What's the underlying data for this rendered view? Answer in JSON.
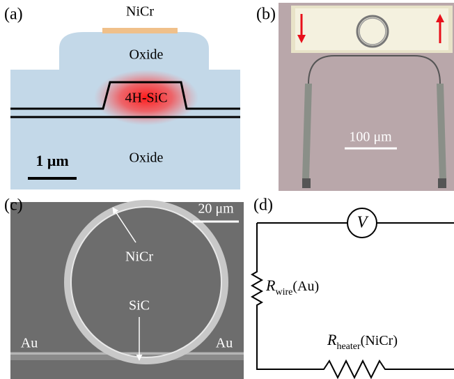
{
  "panels": {
    "a": {
      "label": "(a)",
      "heater": "NiCr",
      "top_oxide": "Oxide",
      "core": "4H-SiC",
      "bottom_oxide": "Oxide",
      "scale_bar": "1 μm"
    },
    "b": {
      "label": "(b)",
      "scale_bar": "100 μm"
    },
    "c": {
      "label": "(c)",
      "scale_bar": "20 μm",
      "heater": "NiCr",
      "ring": "SiC",
      "left_pad": "Au",
      "right_pad": "Au"
    },
    "d": {
      "label": "(d)",
      "meter": "V",
      "wire": {
        "symbol": "R",
        "subscript": "wire",
        "material": "(Au)"
      },
      "heater": {
        "symbol": "R",
        "subscript": "heater",
        "material": "(NiCr)"
      }
    }
  }
}
